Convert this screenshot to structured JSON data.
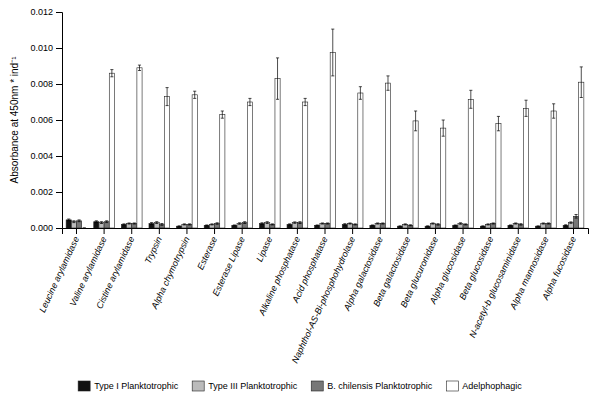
{
  "chart_data": {
    "type": "bar",
    "categories": [
      "Leucine arylamidase",
      "Valine arylamidase",
      "Cistine arylamidase",
      "Trypsin",
      "Alpha chymotrypsin",
      "Esterase",
      "Esterase Lipase",
      "Lipase",
      "Alkaline phosphatase",
      "Acid phosphatase",
      "Naphthol-AS-Bi-phosphohydrolase",
      "Alpha galactosidase",
      "Beta galactosidase",
      "Beta glucuronidase",
      "Alpha glucosidase",
      "Beta glucosidase",
      "N-acetyl-b glucosaminidase",
      "Alpha mannosidase",
      "Alpha fucosidase"
    ],
    "series": [
      {
        "name": "Type I Planktotrophic",
        "color": "#111111",
        "values": [
          0.00045,
          0.00035,
          0.0002,
          0.00025,
          0.0001,
          0.00015,
          0.00015,
          0.00025,
          0.0002,
          0.00015,
          0.0002,
          0.00015,
          0.0001,
          0.0001,
          0.00015,
          0.0001,
          0.00015,
          0.0001,
          0.00015
        ],
        "errors": [
          5e-05,
          5e-05,
          3e-05,
          5e-05,
          2e-05,
          2e-05,
          2e-05,
          4e-05,
          3e-05,
          2e-05,
          4e-05,
          2e-05,
          2e-05,
          2e-05,
          2e-05,
          2e-05,
          2e-05,
          2e-05,
          3e-05
        ]
      },
      {
        "name": "Type III Planktotrophic",
        "color": "#bbbbbb",
        "values": [
          0.00035,
          0.0003,
          0.00025,
          0.0003,
          0.0002,
          0.0002,
          0.00025,
          0.0003,
          0.0003,
          0.00025,
          0.00025,
          0.00025,
          0.0002,
          0.00025,
          0.00025,
          0.0002,
          0.00025,
          0.00025,
          0.0003
        ],
        "errors": [
          5e-05,
          5e-05,
          3e-05,
          5e-05,
          3e-05,
          3e-05,
          4e-05,
          5e-05,
          4e-05,
          3e-05,
          3e-05,
          3e-05,
          3e-05,
          3e-05,
          4e-05,
          3e-05,
          3e-05,
          3e-05,
          4e-05
        ]
      },
      {
        "name": "B. chilensis Planktotrophic",
        "color": "#777777",
        "values": [
          0.0004,
          0.00035,
          0.00025,
          0.0002,
          0.0002,
          0.00025,
          0.0003,
          0.0002,
          0.0003,
          0.00025,
          0.0002,
          0.00025,
          0.00015,
          0.0002,
          0.0002,
          0.00025,
          0.0002,
          0.00025,
          0.00065
        ],
        "errors": [
          5e-05,
          5e-05,
          3e-05,
          5e-05,
          3e-05,
          4e-05,
          5e-05,
          3e-05,
          5e-05,
          3e-05,
          3e-05,
          3e-05,
          3e-05,
          4e-05,
          3e-05,
          3e-05,
          4e-05,
          3e-05,
          0.0001
        ]
      },
      {
        "name": "Adelphophagic",
        "color": "#ffffff",
        "values": [
          0.0,
          0.0086,
          0.0089,
          0.0073,
          0.0074,
          0.0063,
          0.007,
          0.0083,
          0.007,
          0.00975,
          0.0075,
          0.00805,
          0.00595,
          0.00555,
          0.00715,
          0.0058,
          0.00665,
          0.0065,
          0.0081
        ],
        "errors": [
          0.0,
          0.0002,
          0.00015,
          0.0005,
          0.0002,
          0.0002,
          0.0002,
          0.00115,
          0.0002,
          0.0013,
          0.00035,
          0.0004,
          0.00055,
          0.00045,
          0.0005,
          0.0004,
          0.00045,
          0.0004,
          0.00085
        ]
      }
    ],
    "ylabel": "Absorbance at 450nm * ind⁻¹",
    "ylim": [
      0,
      0.012
    ],
    "yticks": [
      {
        "value": 0,
        "label": "0.000"
      },
      0.002,
      0.004,
      0.006,
      0.008,
      {
        "value": 0.01,
        "label": "0.010"
      },
      0.012
    ],
    "grid": false,
    "legend": "bottom"
  }
}
